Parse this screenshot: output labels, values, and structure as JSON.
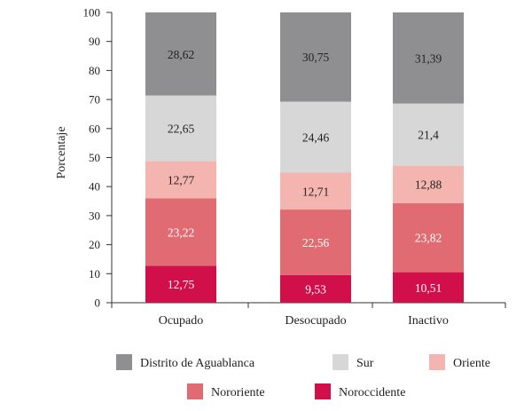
{
  "chart_data": {
    "type": "bar",
    "stacked": true,
    "title": "",
    "xlabel": "",
    "ylabel": "Porcentaje",
    "ylim": [
      0,
      100
    ],
    "yticks": [
      0,
      10,
      20,
      30,
      40,
      50,
      60,
      70,
      80,
      90,
      100
    ],
    "categories": [
      "Ocupado",
      "Desocupado",
      "Inactivo"
    ],
    "series": [
      {
        "name": "Nororiente",
        "color": "#e06b72",
        "values": [
          23.22,
          22.56,
          23.82
        ],
        "labels": [
          "23,22",
          "22,56",
          "23,82"
        ],
        "stack_order": 2,
        "label_color": "#ffffff"
      },
      {
        "name": "Noroccidente",
        "color": "#d10f4b",
        "values": [
          12.75,
          9.53,
          10.51
        ],
        "labels": [
          "12,75",
          "9,53",
          "10,51"
        ],
        "stack_order": 1,
        "label_color": "#ffffff"
      },
      {
        "name": "Oriente",
        "color": "#f4b5b0",
        "values": [
          12.77,
          12.71,
          12.88
        ],
        "labels": [
          "12,77",
          "12,71",
          "12,88"
        ],
        "stack_order": 3,
        "label_color": "#222222"
      },
      {
        "name": "Sur",
        "color": "#d7d7d8",
        "values": [
          22.65,
          24.46,
          21.4
        ],
        "labels": [
          "22,65",
          "24,46",
          "21,4"
        ],
        "stack_order": 4,
        "label_color": "#222222"
      },
      {
        "name": "Distrito de Aguablanca",
        "color": "#8f8f91",
        "values": [
          28.62,
          30.75,
          31.39
        ],
        "labels": [
          "28,62",
          "30,75",
          "31,39"
        ],
        "stack_order": 5,
        "label_color": "#222222"
      }
    ],
    "legend_order": [
      "Distrito de Aguablanca",
      "Sur",
      "Oriente",
      "Nororiente",
      "Noroccidente"
    ],
    "legend_position": "bottom",
    "grid": false
  }
}
